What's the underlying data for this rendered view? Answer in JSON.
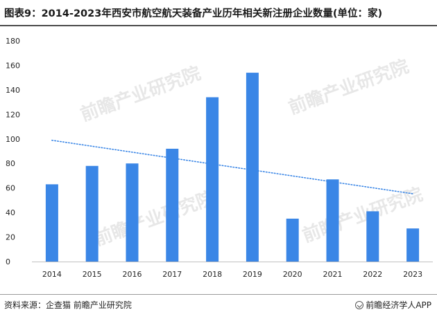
{
  "header": {
    "title": "图表9：2014-2023年西安市航空航天装备产业历年相关新注册企业数量(单位：家)"
  },
  "footer": {
    "source": "资料来源：企查猫 前瞻产业研究院",
    "brand": "前瞻经济学人APP"
  },
  "watermark": {
    "text": "前瞻产业研究院"
  },
  "colors": {
    "bar": "#3a86e6",
    "trendline": "#3a86e6",
    "axis": "#bfbfbf"
  },
  "chart_data": {
    "type": "bar",
    "categories": [
      "2014",
      "2015",
      "2016",
      "2017",
      "2018",
      "2019",
      "2020",
      "2021",
      "2022",
      "2023"
    ],
    "values": [
      63,
      78,
      80,
      92,
      134,
      154,
      35,
      67,
      41,
      27
    ],
    "title": "图表9：2014-2023年西安市航空航天装备产业历年相关新注册企业数量(单位：家)",
    "xlabel": "",
    "ylabel": "",
    "ylim": [
      0,
      180
    ],
    "yticks": [
      "0",
      "20",
      "40",
      "60",
      "80",
      "100",
      "120",
      "140",
      "160",
      "180"
    ],
    "trendline": {
      "type": "linear",
      "style": "dotted"
    },
    "grid": false,
    "legend": "none"
  }
}
